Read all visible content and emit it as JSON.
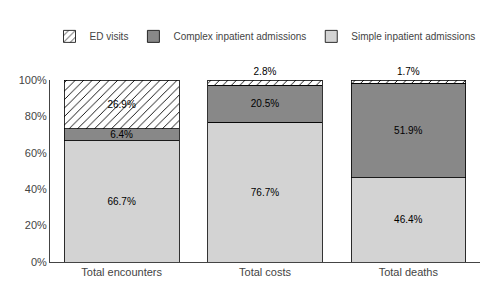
{
  "chart_data": {
    "type": "bar",
    "stacked": true,
    "categories": [
      "Total encounters",
      "Total costs",
      "Total deaths"
    ],
    "series": [
      {
        "name": "Simple inpatient admissions",
        "color": "#d3d3d3",
        "values": [
          66.7,
          76.7,
          46.4
        ],
        "value_labels": [
          "66.7%",
          "76.7%",
          "46.4%"
        ]
      },
      {
        "name": "Complex inpatient admissions",
        "color": "#888888",
        "values": [
          6.4,
          20.5,
          51.9
        ],
        "value_labels": [
          "6.4%",
          "20.5%",
          "51.9%"
        ]
      },
      {
        "name": "ED visits",
        "color": "#ffffff",
        "marker": "hatch",
        "values": [
          26.9,
          2.8,
          1.7
        ],
        "value_labels": [
          "26.9%",
          "2.8%",
          "1.7%"
        ]
      }
    ],
    "ylim": [
      0,
      100
    ],
    "yticks": [
      {
        "value": 0,
        "label": "0%"
      },
      {
        "value": 20,
        "label": "20%"
      },
      {
        "value": 40,
        "label": "40%"
      },
      {
        "value": 60,
        "label": "60%"
      },
      {
        "value": 80,
        "label": "80%"
      },
      {
        "value": 100,
        "label": "100%"
      }
    ],
    "data_labels": true,
    "grid": false,
    "legend": "top"
  }
}
